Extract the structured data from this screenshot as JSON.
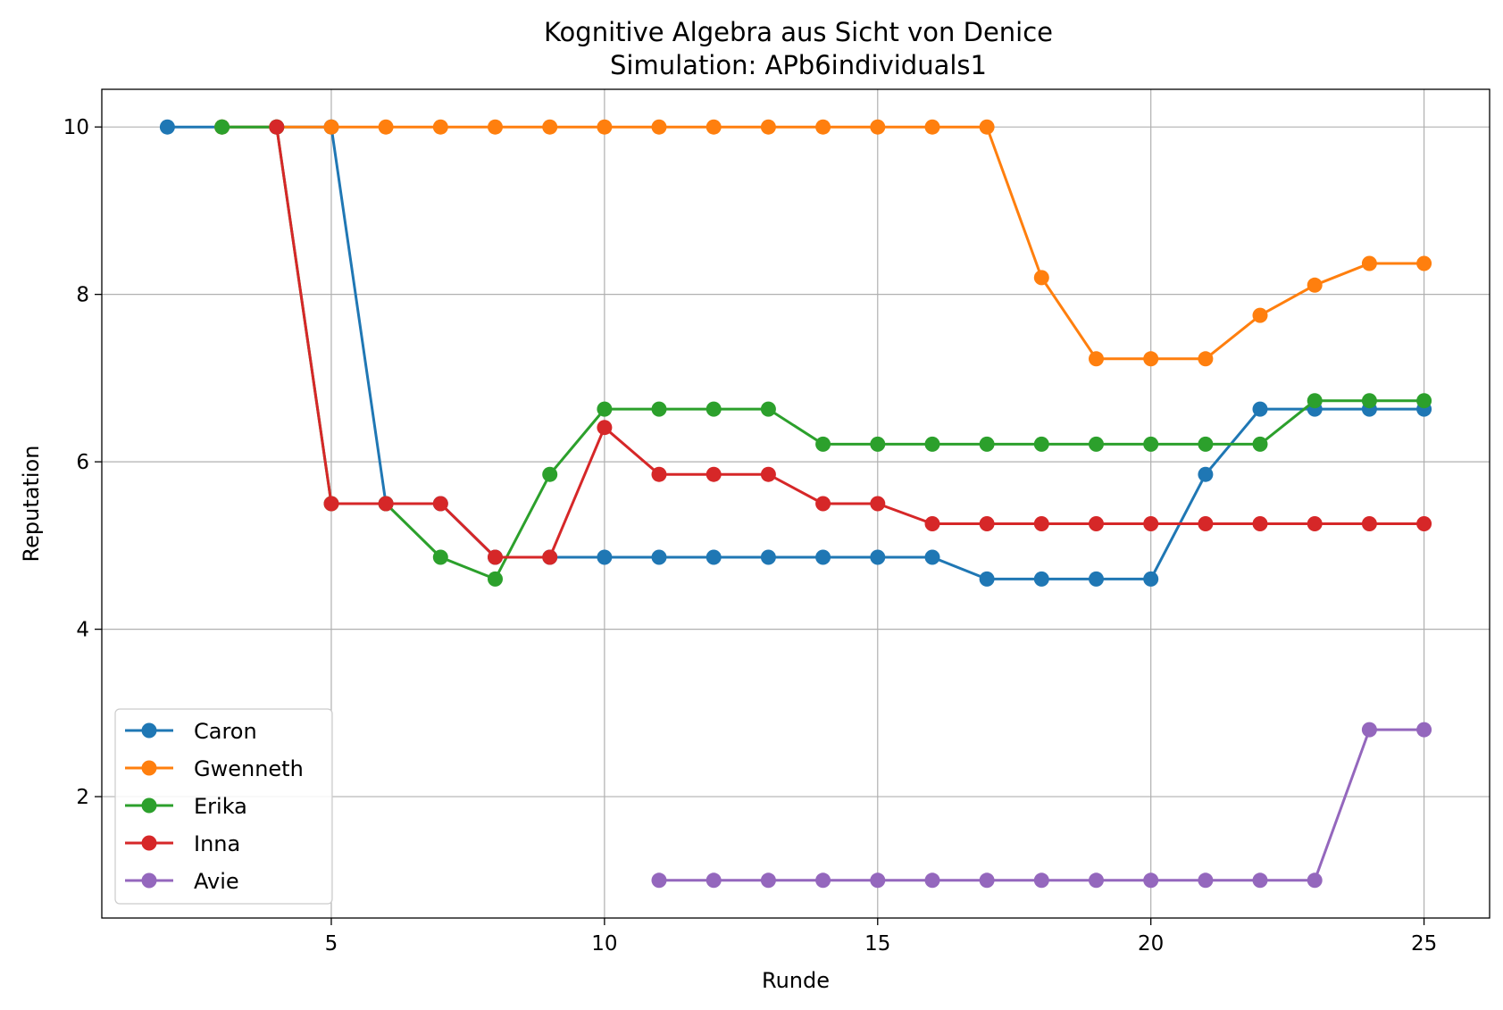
{
  "chart_data": {
    "type": "line",
    "title": "Kognitive Algebra aus Sicht von Denice",
    "subtitle": "Simulation: APb6individuals1",
    "xlabel": "Runde",
    "ylabel": "Reputation",
    "xlim": [
      0.8,
      26.2
    ],
    "ylim": [
      0.55,
      10.45
    ],
    "xticks": [
      5,
      10,
      15,
      20,
      25
    ],
    "yticks": [
      2,
      4,
      6,
      8,
      10
    ],
    "grid": true,
    "legend_position": "lower-left",
    "series": [
      {
        "name": "Caron",
        "color": "#1f77b4",
        "x": [
          2,
          3,
          4,
          5,
          6,
          7,
          8,
          9,
          10,
          11,
          12,
          13,
          14,
          15,
          16,
          17,
          18,
          19,
          20,
          21,
          22,
          23,
          24,
          25
        ],
        "y": [
          10,
          10,
          10,
          10,
          5.5,
          5.5,
          4.86,
          4.86,
          4.86,
          4.86,
          4.86,
          4.86,
          4.86,
          4.86,
          4.86,
          4.6,
          4.6,
          4.6,
          4.6,
          5.85,
          6.63,
          6.63,
          6.63,
          6.63
        ]
      },
      {
        "name": "Gwenneth",
        "color": "#ff7f0e",
        "x": [
          3,
          4,
          5,
          6,
          7,
          8,
          9,
          10,
          11,
          12,
          13,
          14,
          15,
          16,
          17,
          18,
          19,
          20,
          21,
          22,
          23,
          24,
          25
        ],
        "y": [
          10,
          10,
          10,
          10,
          10,
          10,
          10,
          10,
          10,
          10,
          10,
          10,
          10,
          10,
          10,
          8.2,
          7.23,
          7.23,
          7.23,
          7.75,
          8.11,
          8.37,
          8.37
        ]
      },
      {
        "name": "Erika",
        "color": "#2ca02c",
        "x": [
          3,
          4,
          5,
          6,
          7,
          8,
          9,
          10,
          11,
          12,
          13,
          14,
          15,
          16,
          17,
          18,
          19,
          20,
          21,
          22,
          23,
          24,
          25
        ],
        "y": [
          10,
          10,
          5.5,
          5.5,
          4.86,
          4.6,
          5.85,
          6.63,
          6.63,
          6.63,
          6.63,
          6.21,
          6.21,
          6.21,
          6.21,
          6.21,
          6.21,
          6.21,
          6.21,
          6.21,
          6.73,
          6.73,
          6.73
        ]
      },
      {
        "name": "Inna",
        "color": "#d62728",
        "x": [
          4,
          5,
          6,
          7,
          8,
          9,
          10,
          11,
          12,
          13,
          14,
          15,
          16,
          17,
          18,
          19,
          20,
          21,
          22,
          23,
          24,
          25
        ],
        "y": [
          10,
          5.5,
          5.5,
          5.5,
          4.86,
          4.86,
          6.41,
          5.85,
          5.85,
          5.85,
          5.5,
          5.5,
          5.26,
          5.26,
          5.26,
          5.26,
          5.26,
          5.26,
          5.26,
          5.26,
          5.26,
          5.26
        ]
      },
      {
        "name": "Avie",
        "color": "#9467bd",
        "x": [
          11,
          12,
          13,
          14,
          15,
          16,
          17,
          18,
          19,
          20,
          21,
          22,
          23,
          24,
          25
        ],
        "y": [
          1,
          1,
          1,
          1,
          1,
          1,
          1,
          1,
          1,
          1,
          1,
          1,
          1,
          2.8,
          2.8
        ]
      }
    ]
  }
}
